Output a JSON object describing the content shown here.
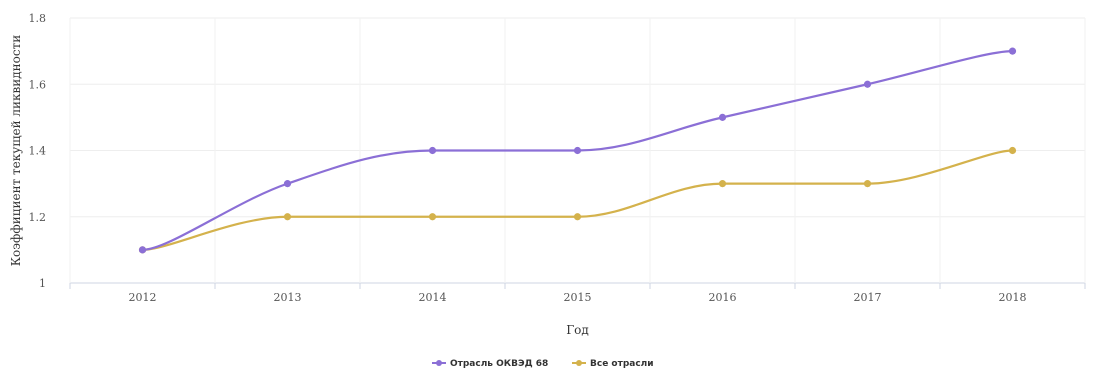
{
  "chart_data": {
    "type": "line",
    "xlabel": "Год",
    "ylabel": "Коэффициент текущей ликвидности",
    "categories": [
      "2012",
      "2013",
      "2014",
      "2015",
      "2016",
      "2017",
      "2018"
    ],
    "ylim": [
      1,
      1.8
    ],
    "yticks": [
      "1",
      "1.2",
      "1.4",
      "1.6",
      "1.8"
    ],
    "grid": true,
    "legend_position": "bottom-center",
    "series": [
      {
        "name": "Отрасль ОКВЭД 68",
        "color": "#8b6fd6",
        "values": [
          1.1,
          1.3,
          1.4,
          1.4,
          1.5,
          1.6,
          1.7
        ]
      },
      {
        "name": "Все отрасли",
        "color": "#d4b24c",
        "values": [
          1.1,
          1.2,
          1.2,
          1.2,
          1.3,
          1.3,
          1.4
        ]
      }
    ]
  }
}
